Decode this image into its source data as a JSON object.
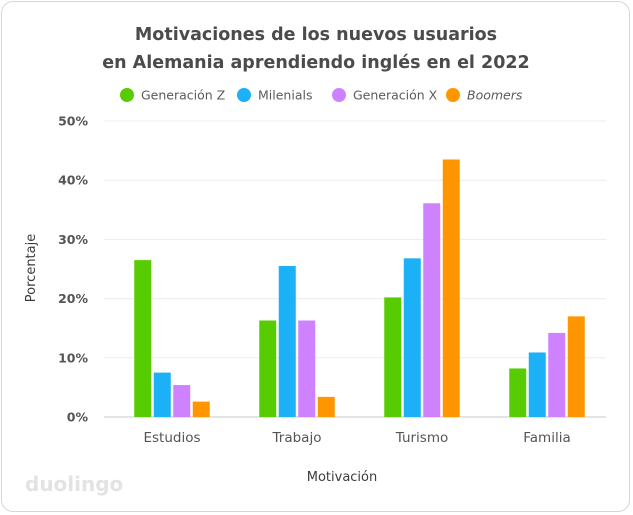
{
  "chart_data": {
    "type": "bar",
    "title_lines": [
      "Motivaciones de los nuevos usuarios",
      "en Alemania aprendiendo inglés en el 2022"
    ],
    "xlabel": "Motivación",
    "ylabel": "Porcentaje",
    "ylim": [
      0,
      50
    ],
    "yticks": [
      0,
      10,
      20,
      30,
      40,
      50
    ],
    "ytick_labels": [
      "0%",
      "10%",
      "20%",
      "30%",
      "40%",
      "50%"
    ],
    "categories": [
      "Estudios",
      "Trabajo",
      "Turismo",
      "Familia"
    ],
    "series": [
      {
        "name": "Generación Z",
        "color": "#58cc02",
        "values": [
          26.5,
          16.3,
          20.2,
          8.2
        ]
      },
      {
        "name": "Milenials",
        "color": "#1cb0f6",
        "values": [
          7.5,
          25.5,
          26.8,
          10.9
        ]
      },
      {
        "name": "Generación X",
        "color": "#ce82ff",
        "values": [
          5.4,
          16.3,
          36.1,
          14.2
        ]
      },
      {
        "name": "Boomers",
        "color": "#ff9600",
        "values": [
          2.6,
          3.4,
          43.5,
          17.0
        ],
        "italic": true
      }
    ],
    "grid": true,
    "legend_position": "top"
  },
  "brand": {
    "logo_text": "duolingo"
  }
}
